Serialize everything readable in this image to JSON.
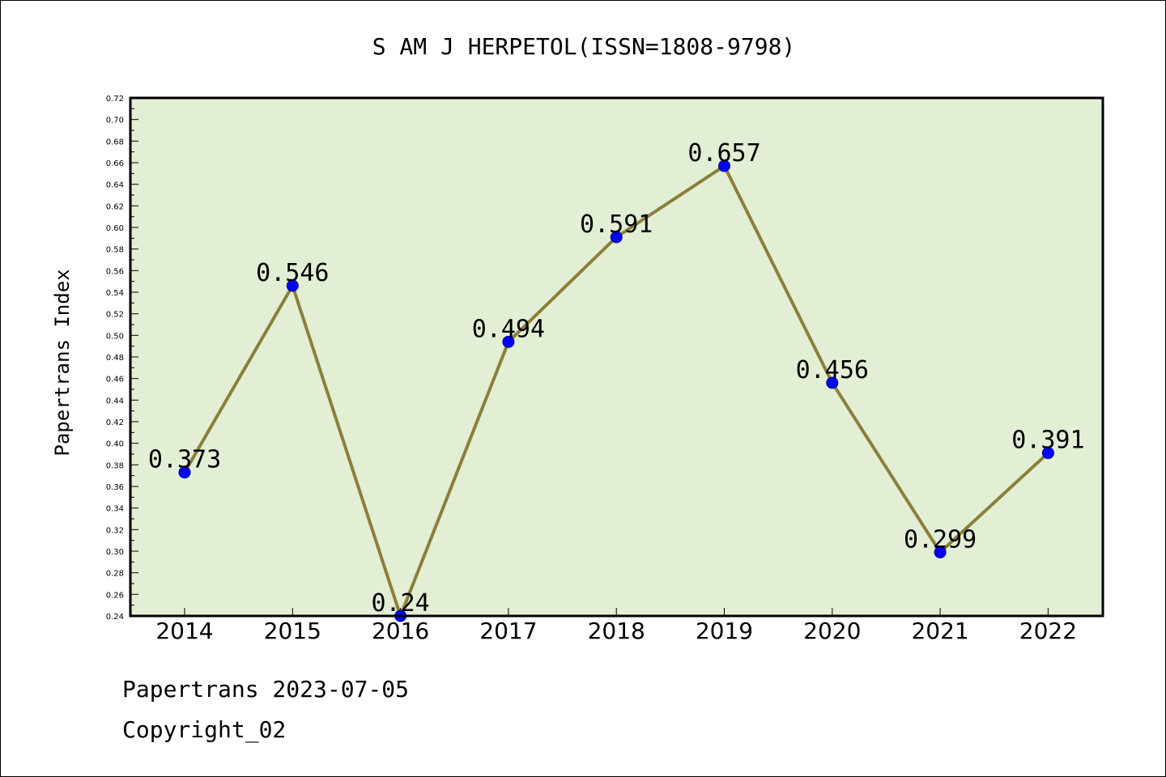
{
  "chart_data": {
    "type": "line",
    "title": "S AM J HERPETOL(ISSN=1808-9798)",
    "xlabel": "",
    "ylabel": "Papertrans Index",
    "categories": [
      "2014",
      "2015",
      "2016",
      "2017",
      "2018",
      "2019",
      "2020",
      "2021",
      "2022"
    ],
    "series": [
      {
        "values": [
          0.373,
          0.546,
          0.24,
          0.494,
          0.591,
          0.657,
          0.456,
          0.299,
          0.391
        ],
        "data_labels": [
          "0.373",
          "0.546",
          "0.24",
          "0.494",
          "0.591",
          "0.657",
          "0.456",
          "0.299",
          "0.391"
        ]
      }
    ],
    "ylim": [
      0.24,
      0.72
    ],
    "yticks": [
      "0.24",
      "0.26",
      "0.28",
      "0.30",
      "0.32",
      "0.34",
      "0.36",
      "0.38",
      "0.40",
      "0.42",
      "0.44",
      "0.46",
      "0.48",
      "0.50",
      "0.52",
      "0.54",
      "0.56",
      "0.58",
      "0.60",
      "0.62",
      "0.64",
      "0.66",
      "0.68",
      "0.70",
      "0.72"
    ],
    "grid": false,
    "legend": "none",
    "colors": {
      "line": "#8B7F3A",
      "marker": "#0000FF",
      "plot_background": "#E2EFD5"
    }
  },
  "footer": {
    "line1": "Papertrans 2023-07-05",
    "line2": "Copyright_02"
  }
}
